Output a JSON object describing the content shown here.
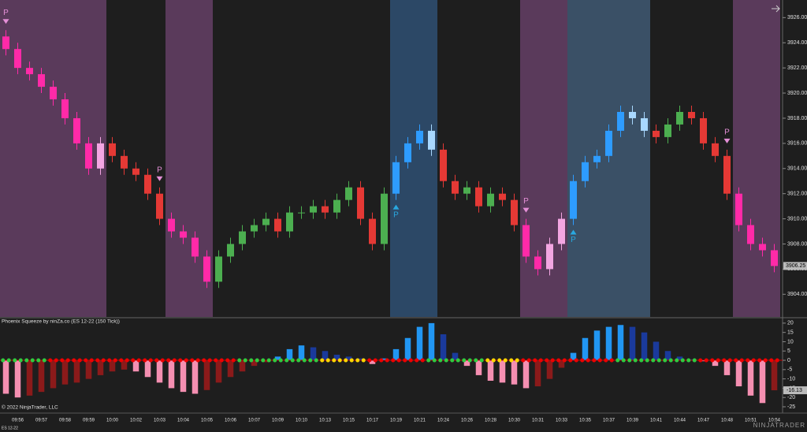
{
  "chart_data": [
    {
      "type": "candlestick",
      "open": [
        3924.5,
        3923.5,
        3922,
        3921.5,
        3920.5,
        3919.5,
        3918,
        3916,
        3914,
        3916,
        3915,
        3914,
        3913.5,
        3912,
        3910,
        3909,
        3908.5,
        3907,
        3905,
        3907,
        3908,
        3909,
        3909.5,
        3910,
        3909,
        3910.5,
        3910.5,
        3911,
        3910.5,
        3911.5,
        3912.5,
        3910,
        3908,
        3912,
        3914.5,
        3916,
        3917,
        3915.5,
        3913,
        3912,
        3912.5,
        3911,
        3912,
        3911.5,
        3909.5,
        3907,
        3906,
        3908,
        3910,
        3913,
        3914.5,
        3915,
        3917,
        3918.5,
        3918,
        3917,
        3916.5,
        3917.5,
        3918.5,
        3918,
        3916,
        3915,
        3912,
        3909.5,
        3908,
        3907.5
      ],
      "high": [
        3925,
        3924,
        3922.5,
        3922,
        3921,
        3920,
        3918.5,
        3916.5,
        3916.5,
        3916.5,
        3915.5,
        3914.5,
        3914,
        3912.5,
        3910.5,
        3909.5,
        3909,
        3907.5,
        3907.5,
        3908.5,
        3909.5,
        3910,
        3910.5,
        3910.5,
        3911,
        3911,
        3911.5,
        3911.5,
        3912,
        3913,
        3913,
        3910.5,
        3912.5,
        3915,
        3916.5,
        3917.5,
        3917.5,
        3916,
        3913.5,
        3913,
        3913,
        3912.5,
        3912.5,
        3912,
        3910,
        3907.5,
        3908.5,
        3910.5,
        3913.5,
        3915,
        3915.5,
        3917.5,
        3919,
        3919,
        3918.5,
        3917.5,
        3918,
        3919,
        3919,
        3918.5,
        3916.5,
        3915.5,
        3912.5,
        3910,
        3908.5,
        3908
      ],
      "low": [
        3923,
        3921.5,
        3921,
        3920,
        3919,
        3917.5,
        3915.5,
        3913.5,
        3913.5,
        3914.5,
        3913.5,
        3913,
        3911.5,
        3909.5,
        3908.5,
        3908,
        3906.5,
        3904.5,
        3904.5,
        3906.5,
        3907.5,
        3908.5,
        3909,
        3908.5,
        3908.5,
        3910,
        3910,
        3910,
        3910,
        3911,
        3909.5,
        3907.5,
        3907.5,
        3911.5,
        3914,
        3915.5,
        3915,
        3912.5,
        3911.5,
        3911.5,
        3910.5,
        3910.5,
        3911,
        3909,
        3906.5,
        3905.5,
        3905.5,
        3907.5,
        3909.5,
        3912.5,
        3914,
        3914.5,
        3916.5,
        3917.5,
        3916.5,
        3916,
        3916,
        3917,
        3917.5,
        3915.5,
        3914.5,
        3911.5,
        3909,
        3907.5,
        3907,
        3905.75
      ],
      "close": [
        3923.5,
        3922,
        3921.5,
        3920.5,
        3919.5,
        3918,
        3916,
        3914,
        3916,
        3915,
        3914,
        3913.5,
        3912,
        3910,
        3909,
        3908.5,
        3907,
        3905,
        3907,
        3908,
        3909,
        3909.5,
        3910,
        3909,
        3910.5,
        3910.5,
        3911,
        3910.5,
        3911.5,
        3912.5,
        3910,
        3908,
        3912,
        3914.5,
        3916,
        3917,
        3915.5,
        3913,
        3912,
        3912.5,
        3911,
        3912,
        3911.5,
        3909.5,
        3907,
        3906,
        3908,
        3910,
        3913,
        3914.5,
        3915,
        3917,
        3918.5,
        3918,
        3917,
        3916.5,
        3917.5,
        3918.5,
        3918,
        3916,
        3915,
        3912,
        3909.5,
        3908,
        3907.5,
        3906.25
      ],
      "up_color": "#4caf50",
      "down_color": "#e53935",
      "zones": [
        {
          "start": 0,
          "end": 8,
          "color": "#5a3a5b",
          "up_color": "#f3a6e2",
          "down_color": "#ff2aa8"
        },
        {
          "start": 14,
          "end": 17,
          "color": "#5a3a5b",
          "up_color": "#f3a6e2",
          "down_color": "#ff2aa8"
        },
        {
          "start": 33,
          "end": 36,
          "color": "#2c4866",
          "up_color": "#2e9cff",
          "down_color": "#a8d8ff"
        },
        {
          "start": 44,
          "end": 47,
          "color": "#5a3a5b",
          "up_color": "#f3a6e2",
          "down_color": "#ff2aa8"
        },
        {
          "start": 48,
          "end": 54,
          "color": "#3a5066",
          "up_color": "#2e9cff",
          "down_color": "#a8d8ff"
        },
        {
          "start": 62,
          "end": 65,
          "color": "#5a3a5b",
          "up_color": "#f3a6e2",
          "down_color": "#ff2aa8"
        }
      ],
      "signals": [
        {
          "index": 0,
          "label": "P",
          "direction": "down",
          "color": "#e58fd8"
        },
        {
          "index": 13,
          "label": "P",
          "direction": "down",
          "color": "#e58fd8"
        },
        {
          "index": 33,
          "label": "P",
          "direction": "up",
          "color": "#29a8e0"
        },
        {
          "index": 44,
          "label": "P",
          "direction": "down",
          "color": "#e58fd8"
        },
        {
          "index": 48,
          "label": "P",
          "direction": "up",
          "color": "#29a8e0"
        },
        {
          "index": 61,
          "label": "P",
          "direction": "down",
          "color": "#e58fd8"
        }
      ],
      "ylim": [
        3902.2,
        3927.4
      ],
      "yticks": [
        {
          "value": 3904,
          "label": "3904.00"
        },
        {
          "value": 3906,
          "label": "3906.00"
        },
        {
          "value": 3908,
          "label": "3908.00"
        },
        {
          "value": 3910,
          "label": "3910.00"
        },
        {
          "value": 3912,
          "label": "3912.00"
        },
        {
          "value": 3914,
          "label": "3914.00"
        },
        {
          "value": 3916,
          "label": "3916.00"
        },
        {
          "value": 3918,
          "label": "3918.00"
        },
        {
          "value": 3920,
          "label": "3920.00"
        },
        {
          "value": 3922,
          "label": "3922.00"
        },
        {
          "value": 3924,
          "label": "3924.00"
        },
        {
          "value": 3926,
          "label": "3926.00"
        }
      ]
    },
    {
      "type": "histogram-bar",
      "title": "Phoenix Squeeze by ninZa.co (ES 12-22 (150 Tick))",
      "categories": [
        null,
        "09:56",
        null,
        "09:57",
        null,
        "09:58",
        null,
        "09:59",
        null,
        "10:00",
        null,
        "10:02",
        null,
        "10:03",
        null,
        "10:04",
        null,
        "10:05",
        null,
        "10:06",
        null,
        "10:07",
        null,
        "10:09",
        null,
        "10:10",
        null,
        "10:13",
        null,
        "10:15",
        null,
        "10:17",
        null,
        "10:19",
        null,
        "10:21",
        null,
        "10:24",
        null,
        "10:26",
        null,
        "10:28",
        null,
        "10:30",
        null,
        "10:31",
        null,
        "10:33",
        null,
        "10:35",
        null,
        "10:37",
        null,
        "10:39",
        null,
        "10:41",
        null,
        "10:44",
        null,
        "10:47",
        null,
        "10:48",
        null,
        "10:51",
        null,
        "10:54"
      ],
      "values": [
        -18,
        -20,
        -19,
        -17,
        -15,
        -13,
        -12,
        -10,
        -8,
        -6,
        -5,
        -6,
        -9,
        -12,
        -15,
        -17,
        -18,
        -16,
        -12,
        -9,
        -6,
        -3,
        -1,
        2,
        6,
        8,
        7,
        5,
        3,
        2,
        1,
        -2,
        1,
        6,
        12,
        18,
        20,
        14,
        4,
        -3,
        -8,
        -11,
        -12,
        -13,
        -15,
        -14,
        -10,
        -4,
        4,
        12,
        16,
        18,
        19,
        18,
        15,
        10,
        5,
        2,
        0.5,
        -0.5,
        -3,
        -8,
        -14,
        -19,
        -23,
        -16.13
      ],
      "colors": {
        "pos_up": "#2196f3",
        "pos_down": "#1a3a9c",
        "neg_down": "#f48fb1",
        "neg_up": "#8b1a1a"
      },
      "dot_colors": [
        "#2ecc40",
        "#2ecc40",
        "#2ecc40",
        "#2ecc40",
        "#e00",
        "#e00",
        "#e00",
        "#e00",
        "#e00",
        "#e00",
        "#e00",
        "#e00",
        "#e00",
        "#e00",
        "#e00",
        "#e00",
        "#e00",
        "#e00",
        "#e00",
        "#e00",
        "#2ecc40",
        "#2ecc40",
        "#2ecc40",
        "#2ecc40",
        "#2ecc40",
        "#2ecc40",
        "#2ecc40",
        "#ffd700",
        "#ffd700",
        "#ffd700",
        "#ffd700",
        "#e00",
        "#e00",
        "#e00",
        "#e00",
        "#e00",
        "#2ecc40",
        "#2ecc40",
        "#2ecc40",
        "#2ecc40",
        "#2ecc40",
        "#ffd700",
        "#ffd700",
        "#ffd700",
        "#e00",
        "#e00",
        "#e00",
        "#e00",
        "#e00",
        "#e00",
        "#e00",
        "#e00",
        "#2ecc40",
        "#2ecc40",
        "#2ecc40",
        "#2ecc40",
        "#2ecc40",
        "#2ecc40",
        "#2ecc40",
        "#e00",
        "#e00",
        "#e00",
        "#e00",
        "#e00",
        "#e00",
        "#e00"
      ],
      "ylim": [
        -26.7,
        22.5
      ],
      "yticks": [
        20,
        15,
        10,
        5,
        0,
        -5,
        -10,
        -15,
        -20,
        -25
      ],
      "copyright": "© 2022 NinjaTrader, LLC",
      "instrument": "ES 12-22",
      "logo": "NINJATRADER"
    }
  ]
}
